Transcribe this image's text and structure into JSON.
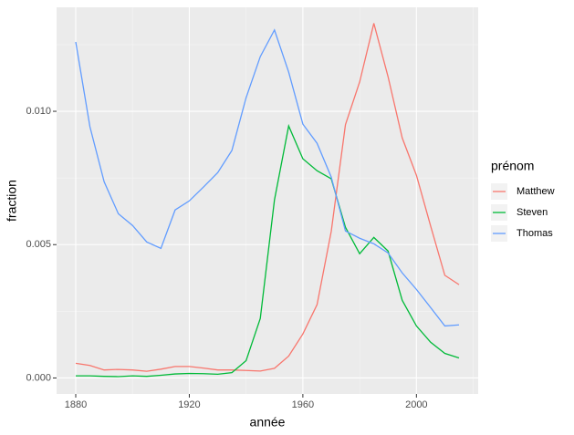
{
  "chart_data": {
    "type": "line",
    "x_label": "année",
    "y_label": "fraction",
    "legend_title": "prénom",
    "x": [
      1880,
      1885,
      1890,
      1895,
      1900,
      1905,
      1910,
      1915,
      1920,
      1925,
      1930,
      1935,
      1940,
      1945,
      1950,
      1955,
      1960,
      1965,
      1970,
      1975,
      1980,
      1985,
      1990,
      1995,
      2000,
      2005,
      2010,
      2015
    ],
    "series": [
      {
        "name": "Matthew",
        "color": "#F8766D",
        "values": [
          0.00055,
          0.00047,
          0.0003,
          0.00032,
          0.0003,
          0.00025,
          0.00033,
          0.00043,
          0.00043,
          0.00037,
          0.0003,
          0.0003,
          0.00028,
          0.00026,
          0.00036,
          0.00082,
          0.00165,
          0.00275,
          0.0055,
          0.0095,
          0.0111,
          0.0133,
          0.0113,
          0.009,
          0.0076,
          0.0057,
          0.00385,
          0.0035
        ]
      },
      {
        "name": "Steven",
        "color": "#00BA38",
        "values": [
          8e-05,
          8e-05,
          6e-05,
          5e-05,
          8e-05,
          6e-05,
          0.0001,
          0.00015,
          0.00017,
          0.00016,
          0.00014,
          0.0002,
          0.00065,
          0.00223,
          0.00668,
          0.00945,
          0.00822,
          0.00777,
          0.00747,
          0.00565,
          0.00466,
          0.00527,
          0.00476,
          0.00291,
          0.00195,
          0.00134,
          0.00092,
          0.00075
        ]
      },
      {
        "name": "Thomas",
        "color": "#619CFF",
        "values": [
          0.0126,
          0.00942,
          0.00736,
          0.00616,
          0.00572,
          0.0051,
          0.00486,
          0.0063,
          0.00664,
          0.00716,
          0.0077,
          0.00853,
          0.01051,
          0.01205,
          0.01305,
          0.01147,
          0.00952,
          0.0088,
          0.00753,
          0.00551,
          0.00524,
          0.00503,
          0.00469,
          0.00394,
          0.00332,
          0.00264,
          0.00195,
          0.00199
        ]
      }
    ],
    "xlim": [
      1873.25,
      2021.75
    ],
    "xticks": [
      1880,
      1920,
      1960,
      2000
    ],
    "xminor": [
      1900,
      1940,
      1980,
      2020
    ],
    "ylim": [
      -0.0006,
      0.0139
    ],
    "yticks": [
      {
        "value": 0,
        "label": "0.000"
      },
      {
        "value": 0.005,
        "label": "0.005"
      },
      {
        "value": 0.01,
        "label": "0.010"
      }
    ],
    "yminor": [
      0.0025,
      0.0075,
      0.0125
    ],
    "grid": true
  }
}
